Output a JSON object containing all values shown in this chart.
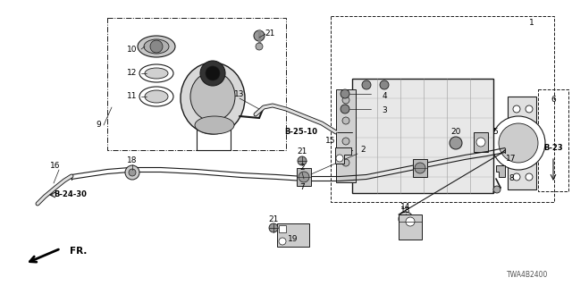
{
  "bg_color": "#ffffff",
  "fig_width": 6.4,
  "fig_height": 3.2,
  "dpi": 100,
  "part_code": "TWA4B2400",
  "lc": "#1a1a1a",
  "gray1": "#888888",
  "gray2": "#aaaaaa",
  "gray3": "#cccccc",
  "gray4": "#d8d8d8",
  "gray5": "#eeeeee",
  "fs_label": 6.5,
  "fs_ref": 6.0,
  "fs_code": 5.5,
  "labels": [
    [
      "1",
      595,
      28
    ],
    [
      "2",
      406,
      168
    ],
    [
      "2",
      338,
      192
    ],
    [
      "3",
      442,
      130
    ],
    [
      "4",
      442,
      112
    ],
    [
      "5",
      520,
      152
    ],
    [
      "6",
      566,
      92
    ],
    [
      "7",
      338,
      216
    ],
    [
      "8",
      560,
      196
    ],
    [
      "9",
      110,
      142
    ],
    [
      "10",
      148,
      60
    ],
    [
      "11",
      148,
      116
    ],
    [
      "12",
      148,
      88
    ],
    [
      "13",
      268,
      108
    ],
    [
      "14",
      454,
      238
    ],
    [
      "15",
      370,
      176
    ],
    [
      "16",
      62,
      194
    ],
    [
      "17",
      560,
      178
    ],
    [
      "18",
      148,
      192
    ],
    [
      "18",
      454,
      248
    ],
    [
      "19",
      330,
      266
    ],
    [
      "20",
      506,
      152
    ],
    [
      "21",
      288,
      44
    ],
    [
      "21",
      338,
      180
    ],
    [
      "21",
      316,
      254
    ]
  ],
  "ref_labels": [
    [
      "B-25-10",
      368,
      148,
      true
    ],
    [
      "B-23",
      620,
      156,
      true
    ],
    [
      "B-24-30",
      72,
      212,
      true
    ]
  ]
}
